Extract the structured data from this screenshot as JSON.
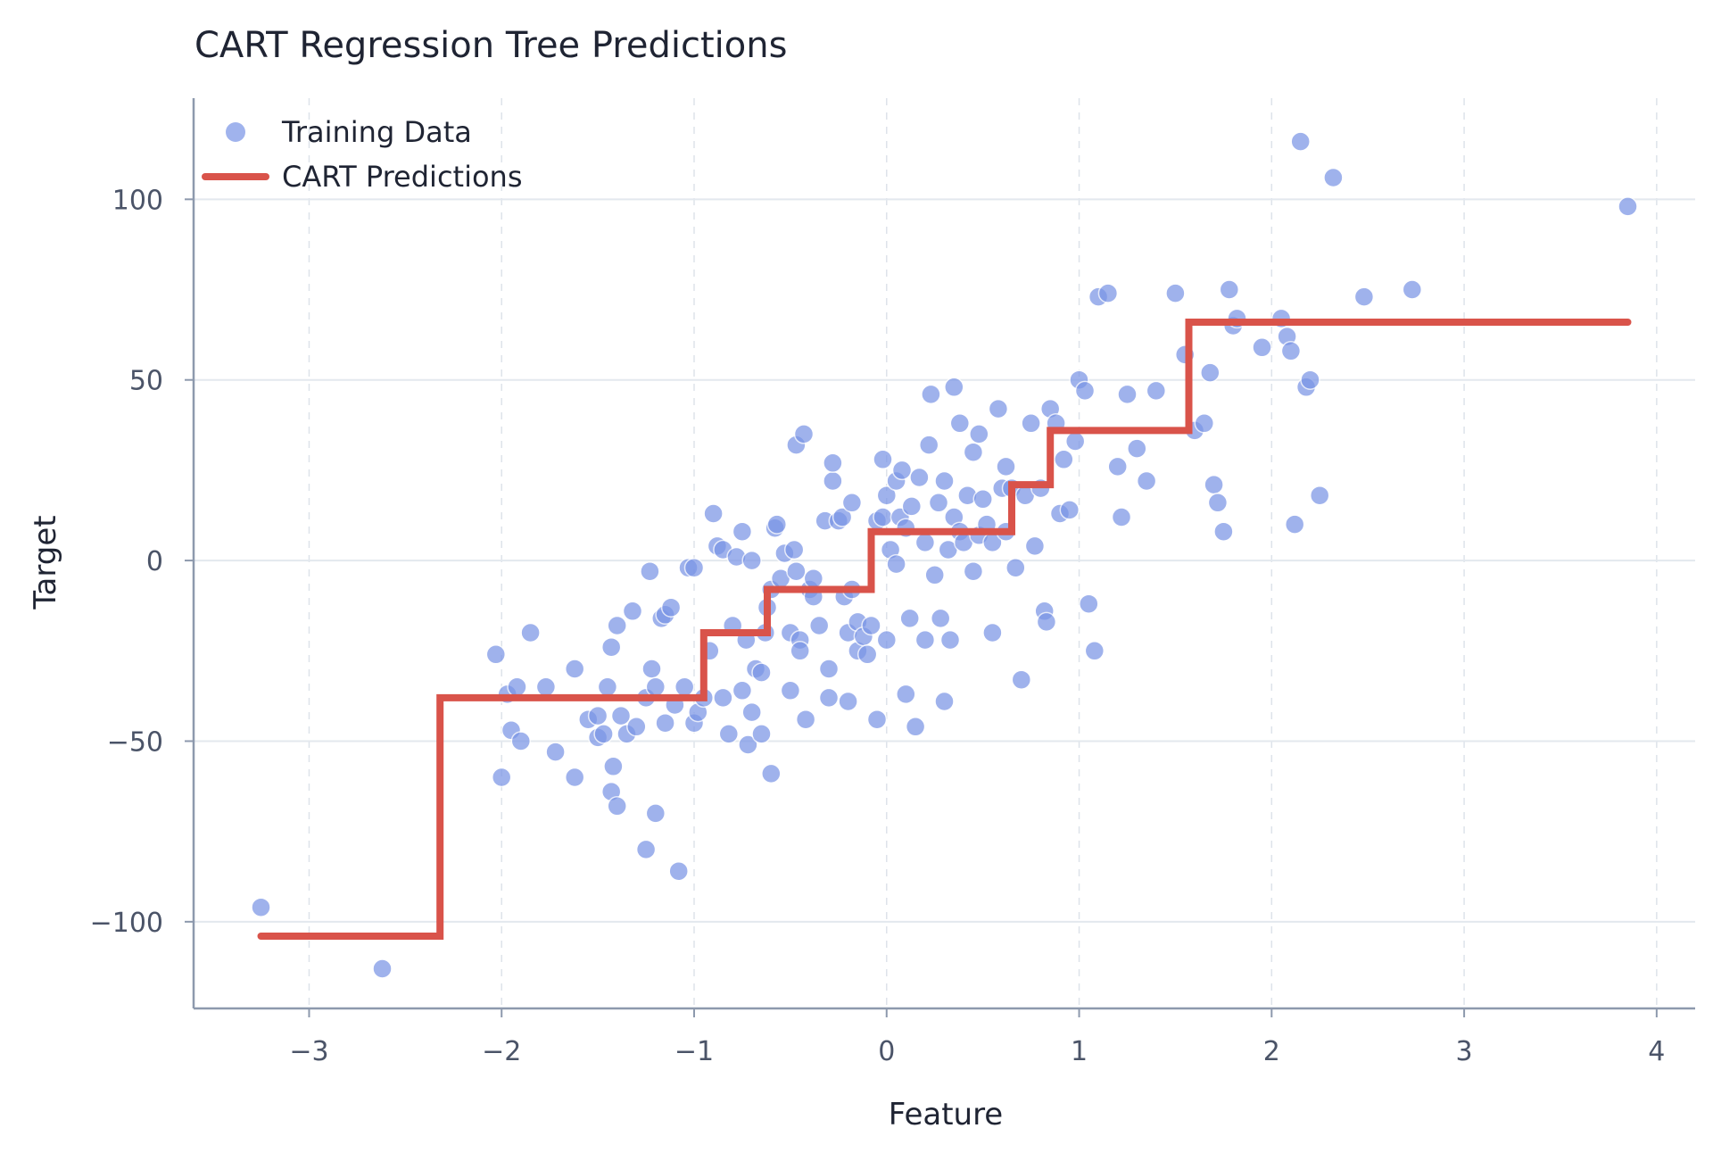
{
  "chart_data": {
    "type": "scatter",
    "title": "CART Regression Tree Predictions",
    "xlabel": "Feature",
    "ylabel": "Target",
    "xlim": [
      -3.6,
      4.2
    ],
    "ylim": [
      -124,
      128
    ],
    "xticks": [
      -3,
      -2,
      -1,
      0,
      1,
      2,
      3,
      4
    ],
    "xtick_labels": [
      "−3",
      "−2",
      "−1",
      "0",
      "1",
      "2",
      "3",
      "4"
    ],
    "yticks": [
      -100,
      -50,
      0,
      50,
      100
    ],
    "ytick_labels": [
      "−100",
      "−50",
      "0",
      "50",
      "100"
    ],
    "grid": true,
    "legend_position": "top-left",
    "colors": {
      "points": "#7b95e6",
      "prediction": "#d9534a"
    },
    "series": [
      {
        "name": "Training Data",
        "type": "scatter",
        "points": [
          [
            -3.25,
            -96
          ],
          [
            -2.62,
            -113
          ],
          [
            -2.03,
            -26
          ],
          [
            -2.0,
            -60
          ],
          [
            -1.97,
            -37
          ],
          [
            -1.92,
            -35
          ],
          [
            -1.95,
            -47
          ],
          [
            -1.9,
            -50
          ],
          [
            -1.85,
            -20
          ],
          [
            -1.77,
            -35
          ],
          [
            -1.72,
            -53
          ],
          [
            -1.62,
            -60
          ],
          [
            -1.62,
            -30
          ],
          [
            -1.55,
            -44
          ],
          [
            -1.5,
            -43
          ],
          [
            -1.5,
            -49
          ],
          [
            -1.47,
            -48
          ],
          [
            -1.45,
            -35
          ],
          [
            -1.43,
            -24
          ],
          [
            -1.4,
            -18
          ],
          [
            -1.42,
            -57
          ],
          [
            -1.43,
            -64
          ],
          [
            -1.4,
            -68
          ],
          [
            -1.38,
            -43
          ],
          [
            -1.35,
            -48
          ],
          [
            -1.32,
            -14
          ],
          [
            -1.3,
            -46
          ],
          [
            -1.25,
            -38
          ],
          [
            -1.23,
            -3
          ],
          [
            -1.25,
            -80
          ],
          [
            -1.22,
            -30
          ],
          [
            -1.2,
            -35
          ],
          [
            -1.2,
            -70
          ],
          [
            -1.17,
            -16
          ],
          [
            -1.15,
            -15
          ],
          [
            -1.12,
            -13
          ],
          [
            -1.15,
            -45
          ],
          [
            -1.1,
            -40
          ],
          [
            -1.08,
            -86
          ],
          [
            -1.05,
            -35
          ],
          [
            -1.03,
            -2
          ],
          [
            -1.0,
            -2
          ],
          [
            -1.0,
            -45
          ],
          [
            -0.98,
            -42
          ],
          [
            -0.95,
            -38
          ],
          [
            -0.92,
            -25
          ],
          [
            -0.9,
            13
          ],
          [
            -0.88,
            4
          ],
          [
            -0.85,
            3
          ],
          [
            -0.85,
            -38
          ],
          [
            -0.82,
            -48
          ],
          [
            -0.8,
            -18
          ],
          [
            -0.78,
            1
          ],
          [
            -0.75,
            -36
          ],
          [
            -0.75,
            8
          ],
          [
            -0.73,
            -22
          ],
          [
            -0.72,
            -51
          ],
          [
            -0.7,
            -42
          ],
          [
            -0.7,
            0
          ],
          [
            -0.68,
            -30
          ],
          [
            -0.65,
            -48
          ],
          [
            -0.65,
            -31
          ],
          [
            -0.63,
            -20
          ],
          [
            -0.62,
            -13
          ],
          [
            -0.6,
            -8
          ],
          [
            -0.6,
            -59
          ],
          [
            -0.58,
            9
          ],
          [
            -0.57,
            10
          ],
          [
            -0.55,
            -5
          ],
          [
            -0.53,
            2
          ],
          [
            -0.5,
            -20
          ],
          [
            -0.5,
            -36
          ],
          [
            -0.48,
            3
          ],
          [
            -0.47,
            -3
          ],
          [
            -0.47,
            32
          ],
          [
            -0.45,
            -22
          ],
          [
            -0.45,
            -25
          ],
          [
            -0.43,
            35
          ],
          [
            -0.42,
            -44
          ],
          [
            -0.4,
            -8
          ],
          [
            -0.38,
            -10
          ],
          [
            -0.38,
            -5
          ],
          [
            -0.35,
            -18
          ],
          [
            -0.32,
            11
          ],
          [
            -0.3,
            -38
          ],
          [
            -0.3,
            -30
          ],
          [
            -0.28,
            22
          ],
          [
            -0.28,
            27
          ],
          [
            -0.25,
            11
          ],
          [
            -0.23,
            12
          ],
          [
            -0.22,
            -10
          ],
          [
            -0.2,
            -20
          ],
          [
            -0.2,
            -39
          ],
          [
            -0.18,
            -8
          ],
          [
            -0.18,
            16
          ],
          [
            -0.15,
            -17
          ],
          [
            -0.15,
            -25
          ],
          [
            -0.12,
            -21
          ],
          [
            -0.1,
            -26
          ],
          [
            -0.08,
            -18
          ],
          [
            -0.05,
            -44
          ],
          [
            -0.05,
            11
          ],
          [
            -0.02,
            28
          ],
          [
            -0.02,
            12
          ],
          [
            0.0,
            -22
          ],
          [
            0.0,
            18
          ],
          [
            0.02,
            3
          ],
          [
            0.05,
            -1
          ],
          [
            0.05,
            22
          ],
          [
            0.07,
            12
          ],
          [
            0.08,
            25
          ],
          [
            0.1,
            -37
          ],
          [
            0.1,
            9
          ],
          [
            0.12,
            -16
          ],
          [
            0.13,
            15
          ],
          [
            0.15,
            -46
          ],
          [
            0.17,
            23
          ],
          [
            0.2,
            5
          ],
          [
            0.2,
            -22
          ],
          [
            0.22,
            32
          ],
          [
            0.23,
            46
          ],
          [
            0.25,
            -4
          ],
          [
            0.27,
            16
          ],
          [
            0.28,
            -16
          ],
          [
            0.3,
            22
          ],
          [
            0.3,
            -39
          ],
          [
            0.32,
            3
          ],
          [
            0.33,
            -22
          ],
          [
            0.35,
            48
          ],
          [
            0.35,
            12
          ],
          [
            0.38,
            38
          ],
          [
            0.38,
            8
          ],
          [
            0.4,
            5
          ],
          [
            0.42,
            18
          ],
          [
            0.45,
            30
          ],
          [
            0.45,
            -3
          ],
          [
            0.48,
            35
          ],
          [
            0.48,
            7
          ],
          [
            0.5,
            17
          ],
          [
            0.52,
            10
          ],
          [
            0.55,
            -20
          ],
          [
            0.55,
            5
          ],
          [
            0.58,
            42
          ],
          [
            0.6,
            20
          ],
          [
            0.62,
            26
          ],
          [
            0.62,
            8
          ],
          [
            0.65,
            20
          ],
          [
            0.67,
            -2
          ],
          [
            0.7,
            -33
          ],
          [
            0.72,
            18
          ],
          [
            0.75,
            38
          ],
          [
            0.77,
            4
          ],
          [
            0.8,
            20
          ],
          [
            0.82,
            -14
          ],
          [
            0.83,
            -17
          ],
          [
            0.85,
            42
          ],
          [
            0.88,
            38
          ],
          [
            0.9,
            13
          ],
          [
            0.92,
            28
          ],
          [
            0.95,
            14
          ],
          [
            0.98,
            33
          ],
          [
            1.0,
            50
          ],
          [
            1.03,
            47
          ],
          [
            1.05,
            -12
          ],
          [
            1.08,
            -25
          ],
          [
            1.1,
            73
          ],
          [
            1.15,
            74
          ],
          [
            1.2,
            26
          ],
          [
            1.22,
            12
          ],
          [
            1.25,
            46
          ],
          [
            1.3,
            31
          ],
          [
            1.35,
            22
          ],
          [
            1.4,
            47
          ],
          [
            1.5,
            74
          ],
          [
            1.55,
            57
          ],
          [
            1.6,
            36
          ],
          [
            1.65,
            38
          ],
          [
            1.68,
            52
          ],
          [
            1.7,
            21
          ],
          [
            1.72,
            16
          ],
          [
            1.75,
            8
          ],
          [
            1.78,
            75
          ],
          [
            1.8,
            65
          ],
          [
            1.82,
            67
          ],
          [
            1.95,
            59
          ],
          [
            2.05,
            67
          ],
          [
            2.08,
            62
          ],
          [
            2.1,
            58
          ],
          [
            2.12,
            10
          ],
          [
            2.15,
            116
          ],
          [
            2.18,
            48
          ],
          [
            2.2,
            50
          ],
          [
            2.25,
            18
          ],
          [
            2.32,
            106
          ],
          [
            2.48,
            73
          ],
          [
            2.73,
            75
          ],
          [
            3.85,
            98
          ]
        ]
      },
      {
        "name": "CART Predictions",
        "type": "step-line",
        "x": [
          -3.25,
          -2.32,
          -2.32,
          -0.95,
          -0.95,
          -0.62,
          -0.62,
          -0.08,
          -0.08,
          0.65,
          0.65,
          0.85,
          0.85,
          1.57,
          1.57,
          3.85
        ],
        "y": [
          -104,
          -104,
          -38,
          -38,
          -20,
          -20,
          -8,
          -8,
          8,
          8,
          21,
          21,
          36,
          36,
          66,
          66
        ]
      }
    ]
  }
}
